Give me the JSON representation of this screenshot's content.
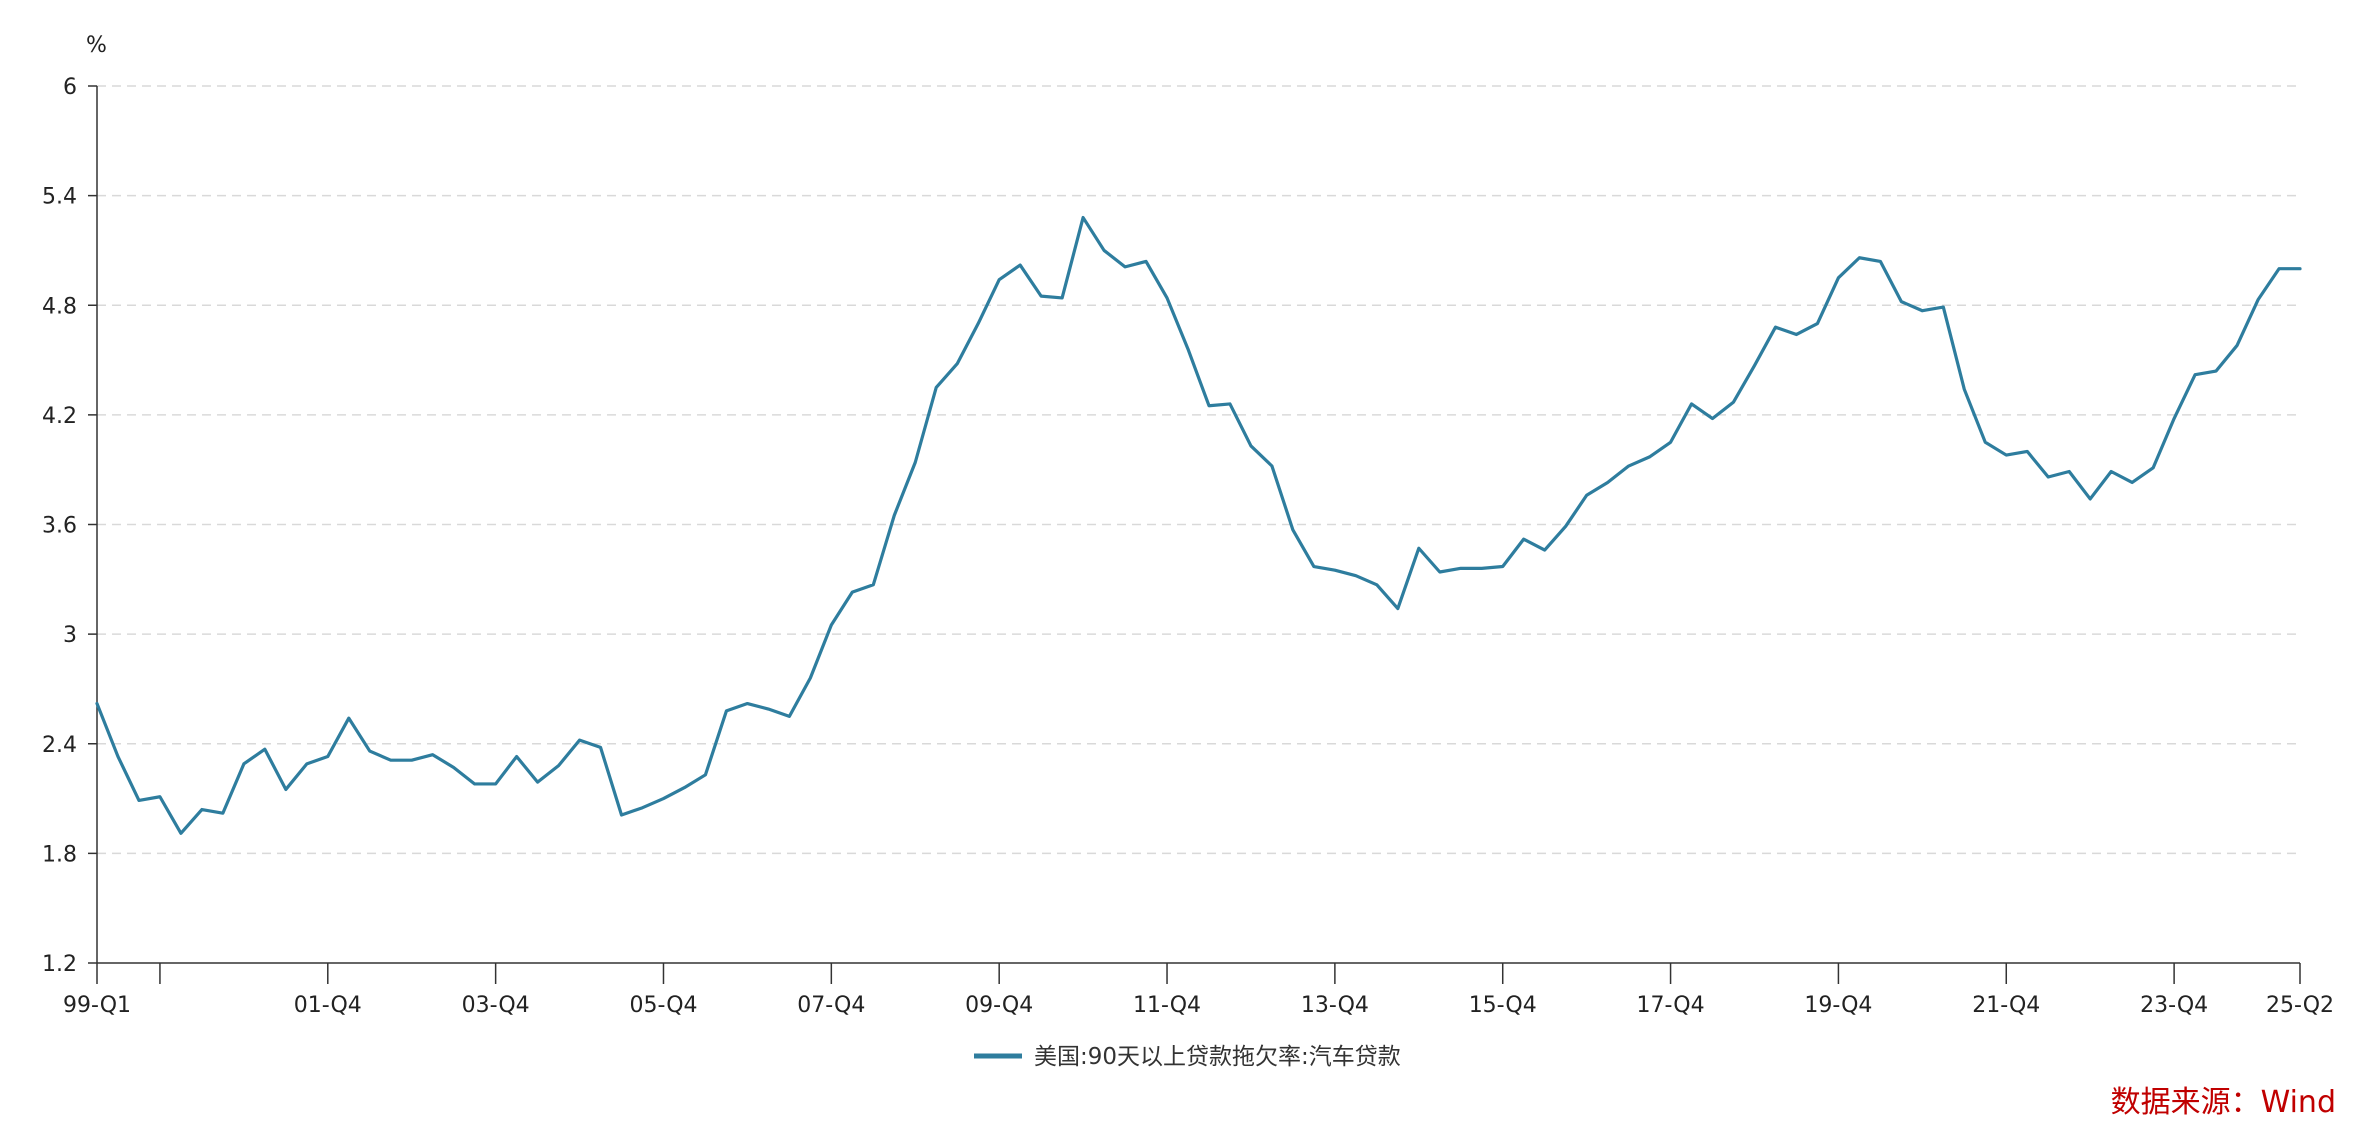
{
  "chart_data": {
    "type": "line",
    "title": "",
    "xlabel": "",
    "ylabel": "%",
    "ylim": [
      1.2,
      6
    ],
    "y_ticks": [
      1.2,
      1.8,
      2.4,
      3,
      3.6,
      4.2,
      4.8,
      5.4,
      6
    ],
    "grid": "horizontal-dashed",
    "legend_position": "bottom-center",
    "x_tick_labels": [
      "99-Q1",
      "01-Q4",
      "03-Q4",
      "05-Q4",
      "07-Q4",
      "09-Q4",
      "11-Q4",
      "13-Q4",
      "15-Q4",
      "17-Q4",
      "19-Q4",
      "21-Q4",
      "23-Q4",
      "25-Q2"
    ],
    "x_tick_indices": [
      0,
      11,
      19,
      27,
      35,
      43,
      51,
      59,
      67,
      75,
      83,
      91,
      99,
      105
    ],
    "x_unlabeled_ticks": [
      3
    ],
    "series": [
      {
        "name": "美国:90天以上贷款拖欠率:汽车贷款",
        "color": "#2e7d9e",
        "values": [
          2.62,
          2.33,
          2.09,
          2.11,
          1.91,
          2.04,
          2.02,
          2.29,
          2.37,
          2.15,
          2.29,
          2.33,
          2.54,
          2.36,
          2.31,
          2.31,
          2.34,
          2.27,
          2.18,
          2.18,
          2.33,
          2.19,
          2.28,
          2.42,
          2.38,
          2.01,
          2.05,
          2.1,
          2.16,
          2.23,
          2.58,
          2.62,
          2.59,
          2.55,
          2.76,
          3.05,
          3.23,
          3.27,
          3.65,
          3.94,
          4.35,
          4.48,
          4.7,
          4.94,
          5.02,
          4.85,
          4.84,
          5.28,
          5.1,
          5.01,
          5.04,
          4.84,
          4.56,
          4.25,
          4.26,
          4.03,
          3.92,
          3.57,
          3.37,
          3.35,
          3.32,
          3.27,
          3.14,
          3.47,
          3.34,
          3.36,
          3.36,
          3.37,
          3.52,
          3.46,
          3.59,
          3.76,
          3.83,
          3.92,
          3.97,
          4.05,
          4.26,
          4.18,
          4.27,
          4.47,
          4.68,
          4.64,
          4.7,
          4.95,
          5.06,
          5.04,
          4.82,
          4.77,
          4.79,
          4.34,
          4.05,
          3.98,
          4.0,
          3.86,
          3.89,
          3.74,
          3.89,
          3.83,
          3.91,
          4.18,
          4.42,
          4.44,
          4.58,
          4.83,
          5.0,
          5.0
        ]
      }
    ]
  },
  "source_note": "数据来源：Wind",
  "source_color": "#c00000"
}
